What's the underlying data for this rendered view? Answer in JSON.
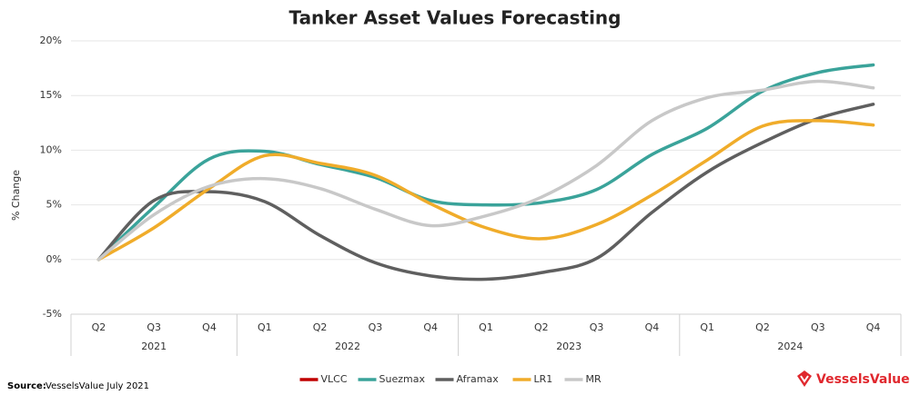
{
  "chart_data": {
    "type": "line",
    "title": "Tanker Asset Values Forecasting",
    "y_label": "% Change",
    "categories": [
      "Q2",
      "Q3",
      "Q4",
      "Q1",
      "Q2",
      "Q3",
      "Q4",
      "Q1",
      "Q2",
      "Q3",
      "Q4",
      "Q1",
      "Q2",
      "Q3",
      "Q4"
    ],
    "years": [
      "2021",
      "2022",
      "2023",
      "2024"
    ],
    "series": [
      {
        "name": "VLCC",
        "color": "#c00000",
        "values": [
          null,
          null,
          null,
          null,
          null,
          null,
          null,
          null,
          null,
          null,
          null,
          null,
          null,
          null,
          null
        ]
      },
      {
        "name": "Suezmax",
        "color": "#3aa39a",
        "values": [
          0,
          4.8,
          9.2,
          9.9,
          8.7,
          7.5,
          5.4,
          5.0,
          5.2,
          6.4,
          9.6,
          12.0,
          15.4,
          17.1,
          17.8
        ]
      },
      {
        "name": "Aframax",
        "color": "#5f5f5f",
        "values": [
          0,
          5.4,
          6.2,
          5.3,
          2.2,
          -0.3,
          -1.5,
          -1.8,
          -1.2,
          0.1,
          4.3,
          8.0,
          10.7,
          12.9,
          14.2
        ]
      },
      {
        "name": "LR1",
        "color": "#f0ac2a",
        "values": [
          0,
          2.9,
          6.5,
          9.5,
          8.8,
          7.7,
          5.1,
          2.9,
          1.9,
          3.2,
          5.9,
          9.1,
          12.2,
          12.7,
          12.3
        ]
      },
      {
        "name": "MR",
        "color": "#c8c8c8",
        "values": [
          0,
          4.1,
          6.7,
          7.4,
          6.5,
          4.6,
          3.1,
          4.0,
          5.7,
          8.6,
          12.7,
          14.8,
          15.5,
          16.3,
          15.7
        ]
      }
    ],
    "ylim": [
      -5,
      20
    ],
    "yticks": [
      {
        "value": -5,
        "label": "-5%"
      },
      {
        "value": 0,
        "label": "0%"
      },
      {
        "value": 5,
        "label": "5%"
      },
      {
        "value": 10,
        "label": "10%"
      },
      {
        "value": 15,
        "label": "15%"
      },
      {
        "value": 20,
        "label": "20%"
      }
    ],
    "grid": true,
    "legend": "bottom",
    "source_label": "Source:",
    "source": "VesselsValue July 2021",
    "brand": "VesselsValue"
  }
}
